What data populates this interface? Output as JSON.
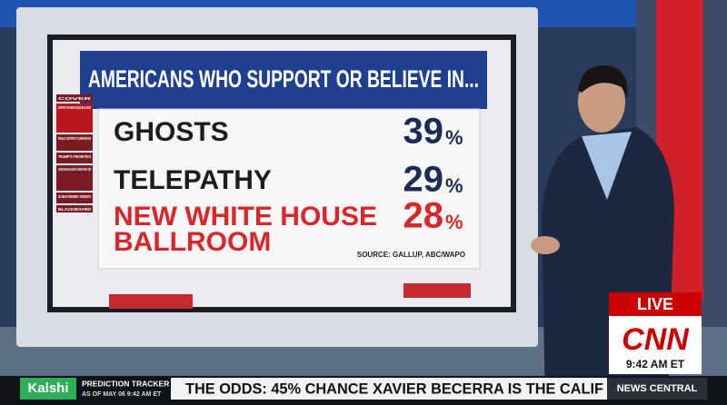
{
  "graphic": {
    "title": "AMERICANS WHO SUPPORT OR BELIEVE IN...",
    "rows": [
      {
        "label_lines": [
          "GHOSTS"
        ],
        "value": "39",
        "unit": "%"
      },
      {
        "label_lines": [
          "TELEPATHY"
        ],
        "value": "29",
        "unit": "%"
      },
      {
        "label_lines": [
          "NEW WHITE HOUSE",
          "BALLROOM"
        ],
        "value": "28",
        "unit": "%"
      }
    ],
    "source": "SOURCE: GALLUP, ABC/WAPO",
    "menu": [
      "COVER",
      "SUPPORT FOR WHITE HOUSE BALLROOM",
      "PUBLIC SUPPORT COMPARISON",
      "TRUMP'S PRIORITIES",
      "CHANCE NEW BALLROOM IS COMPLETED BY 2028",
      "SUBSCRIBER SERIES",
      "BLACKBOARD"
    ]
  },
  "bug": {
    "live": "LIVE",
    "network": "CNN",
    "time": "9:42 AM ET"
  },
  "ticker": {
    "brand": "Kalshi",
    "label": "PREDICTION TRACKER",
    "as_of": "AS OF MAY 06 9:42 AM ET",
    "headline": "THE ODDS: 45% CHANCE XAVIER BECERRA IS THE CALIF",
    "show": "NEWS CENTRAL"
  }
}
